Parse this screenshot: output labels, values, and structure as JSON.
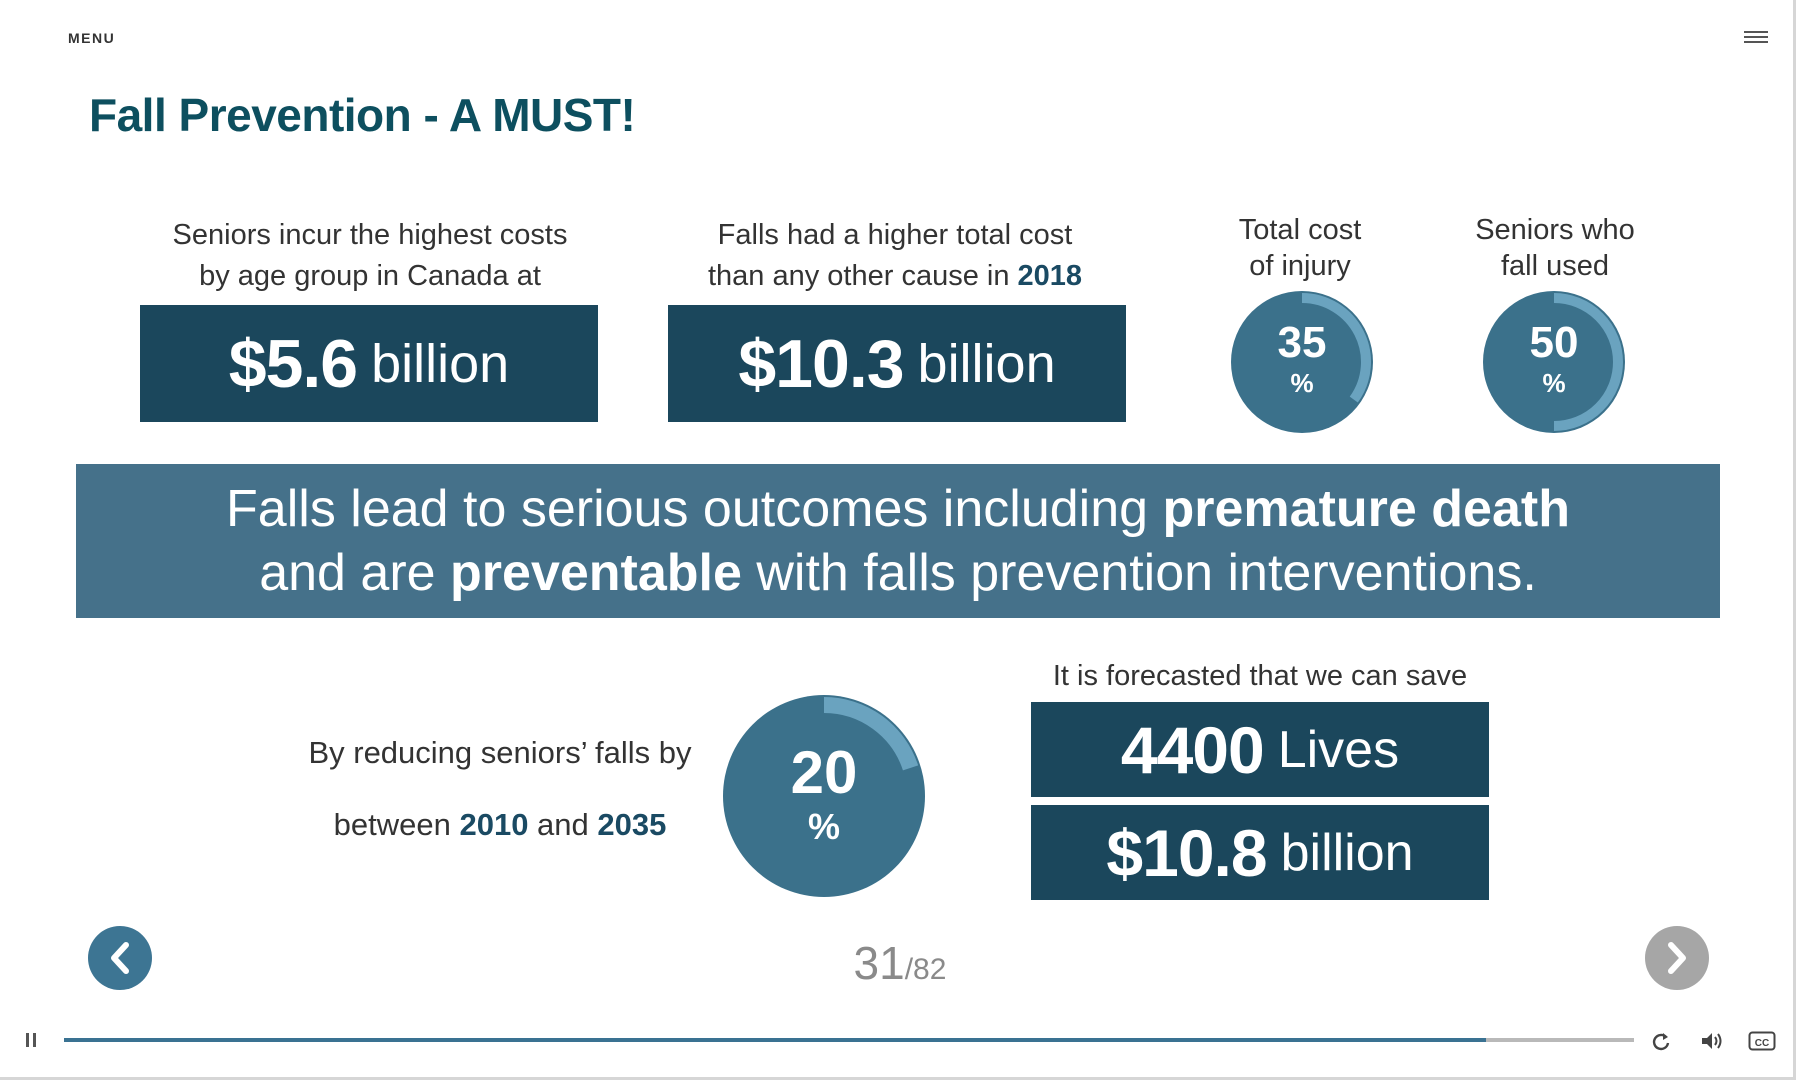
{
  "menu": {
    "label": "MENU"
  },
  "title": "Fall Prevention - A MUST!",
  "stat1": {
    "caption_l1": "Seniors incur the highest costs",
    "caption_l2": "by age group in Canada at",
    "value": "$5.6",
    "unit": "billion"
  },
  "stat2": {
    "caption_l1": "Falls had a higher total cost",
    "caption_l2_pre": "than any other cause in ",
    "caption_year": "2018",
    "value": "$10.3",
    "unit": "billion"
  },
  "dial1": {
    "caption_l1": "Total cost",
    "caption_l2": "of injury",
    "value": "35",
    "unit": "%",
    "fraction": 0.35
  },
  "dial2": {
    "caption_l1": "Seniors who",
    "caption_l2": "fall used",
    "value": "50",
    "unit": "%",
    "fraction": 0.5
  },
  "banner": {
    "l1_plain": "Falls lead to serious outcomes including ",
    "l1_bold": "premature death",
    "l2_plain_a": "and are ",
    "l2_bold": "preventable",
    "l2_plain_b": " with falls prevention interventions."
  },
  "reduce": {
    "line1": "By reducing seniors’ falls by",
    "line2_a": "between ",
    "year_a": "2010",
    "line2_b": " and ",
    "year_b": "2035"
  },
  "dial3": {
    "value": "20",
    "unit": "%",
    "fraction": 0.2
  },
  "forecast": {
    "caption": "It is forecasted that we can save",
    "lives_value": "4400",
    "lives_unit": "Lives",
    "money_value": "$10.8",
    "money_unit": "billion"
  },
  "pagination": {
    "current": "31",
    "total": "/82"
  },
  "player": {
    "progress": 0.906
  },
  "icons": {
    "pause": "pause-icon",
    "replay": "replay-icon",
    "volume": "volume-icon",
    "cc": "closed-captions-icon",
    "prev": "chevron-left-icon",
    "next": "chevron-right-icon",
    "menu": "hamburger-icon"
  },
  "colors": {
    "title": "#0d4f5f",
    "dark_box": "#1b475c",
    "banner": "#45718a",
    "dial": "#3b718b",
    "dial_arc": "#6aa3bf",
    "progress": "#3a7292"
  }
}
